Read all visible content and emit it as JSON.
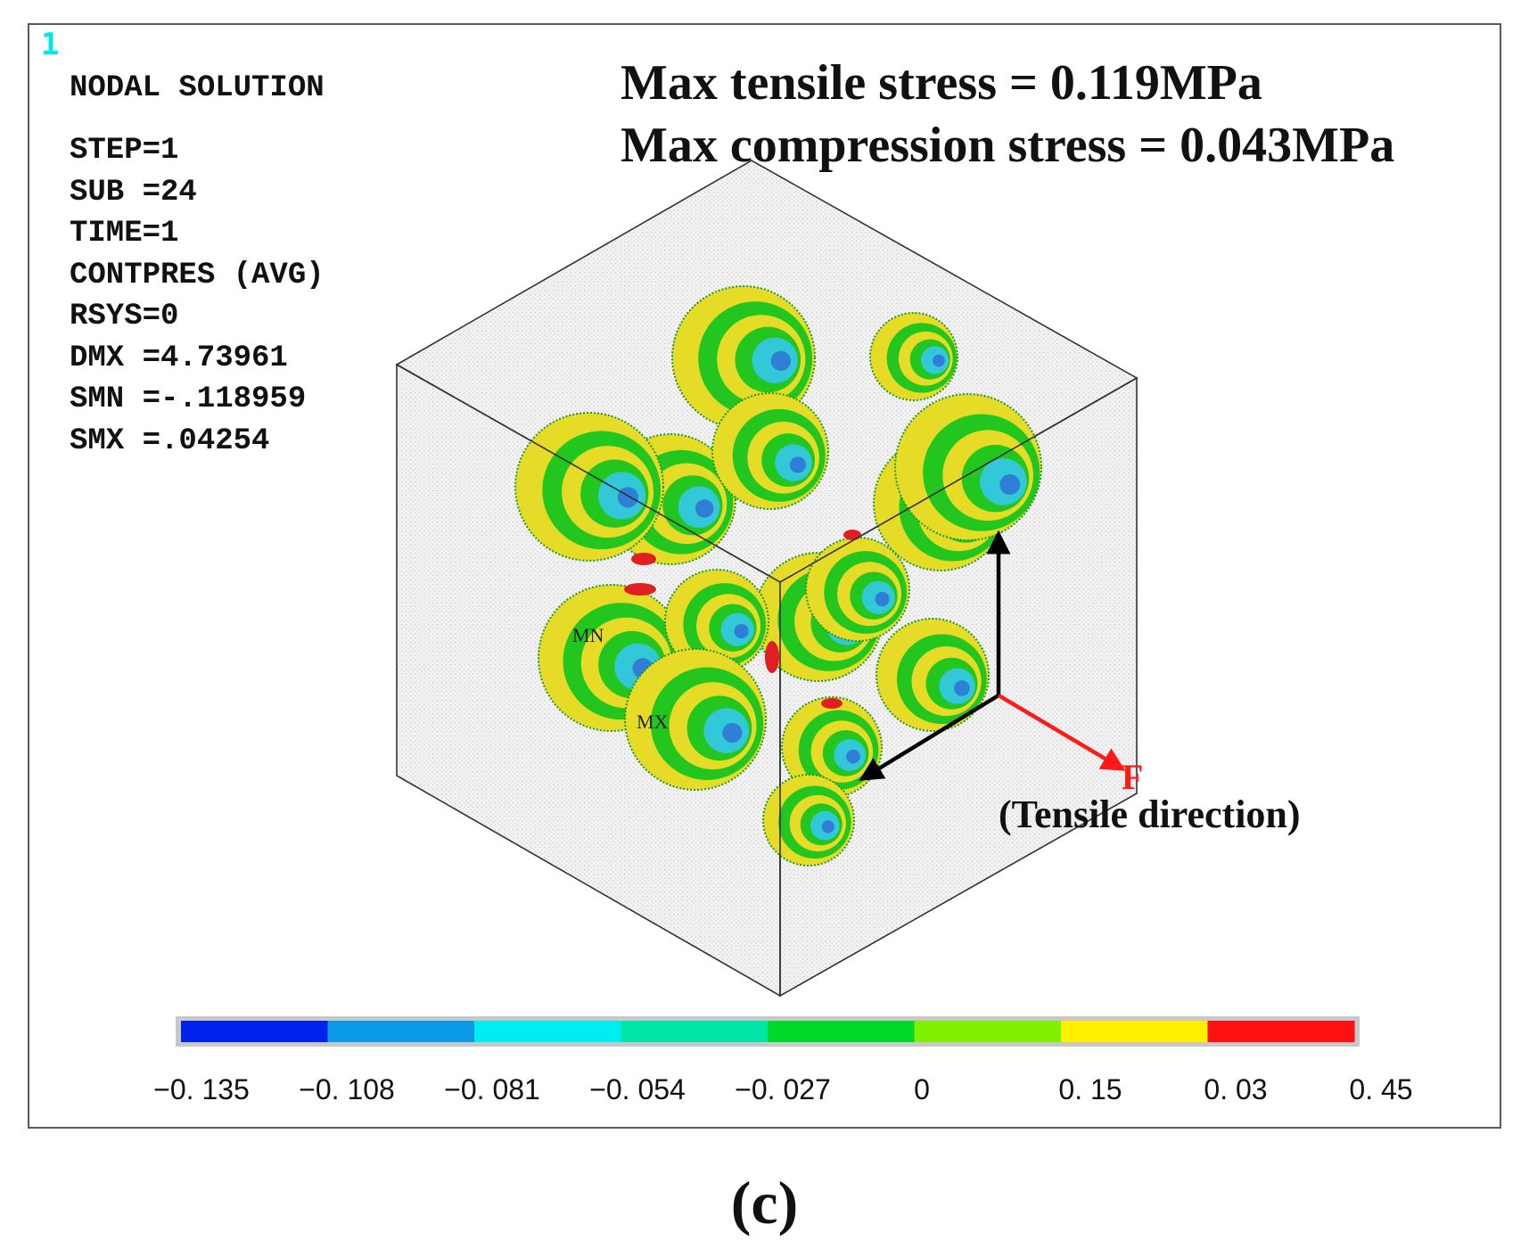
{
  "window_number": "1",
  "info_panel": {
    "title": "NODAL SOLUTION",
    "lines": [
      "STEP=1",
      "SUB =24",
      "TIME=1",
      "CONTPRES (AVG)",
      "RSYS=0",
      "DMX =4.73961",
      "SMN =-.118959",
      "SMX =.04254"
    ]
  },
  "headline": {
    "max_tensile": "Max tensile stress = 0.119MPa",
    "max_compression": "Max compression stress = 0.043MPa"
  },
  "markers": {
    "min": "MN",
    "max": "MX"
  },
  "force": {
    "label": "F",
    "direction_label": "(Tensile direction)",
    "color": "#ff1a1a"
  },
  "axes_color": "#000000",
  "colors": {
    "sphere_yellow": "#e6dc28",
    "sphere_green": "#22c61e",
    "sphere_cyan": "#33c8d8",
    "sphere_blue": "#2f7fd6",
    "hotspot_red": "#e02020"
  },
  "legend": {
    "colors": [
      "#0022ee",
      "#0a9ae6",
      "#00eef2",
      "#00e6a6",
      "#00d82a",
      "#7ef000",
      "#fff000",
      "#ff1010"
    ],
    "labels": [
      "−0. 135",
      "−0. 108",
      "−0. 081",
      "−0. 054",
      "−0. 027",
      "0",
      "0. 15",
      "0. 03",
      "0. 45"
    ]
  },
  "figure_label": "(c)"
}
